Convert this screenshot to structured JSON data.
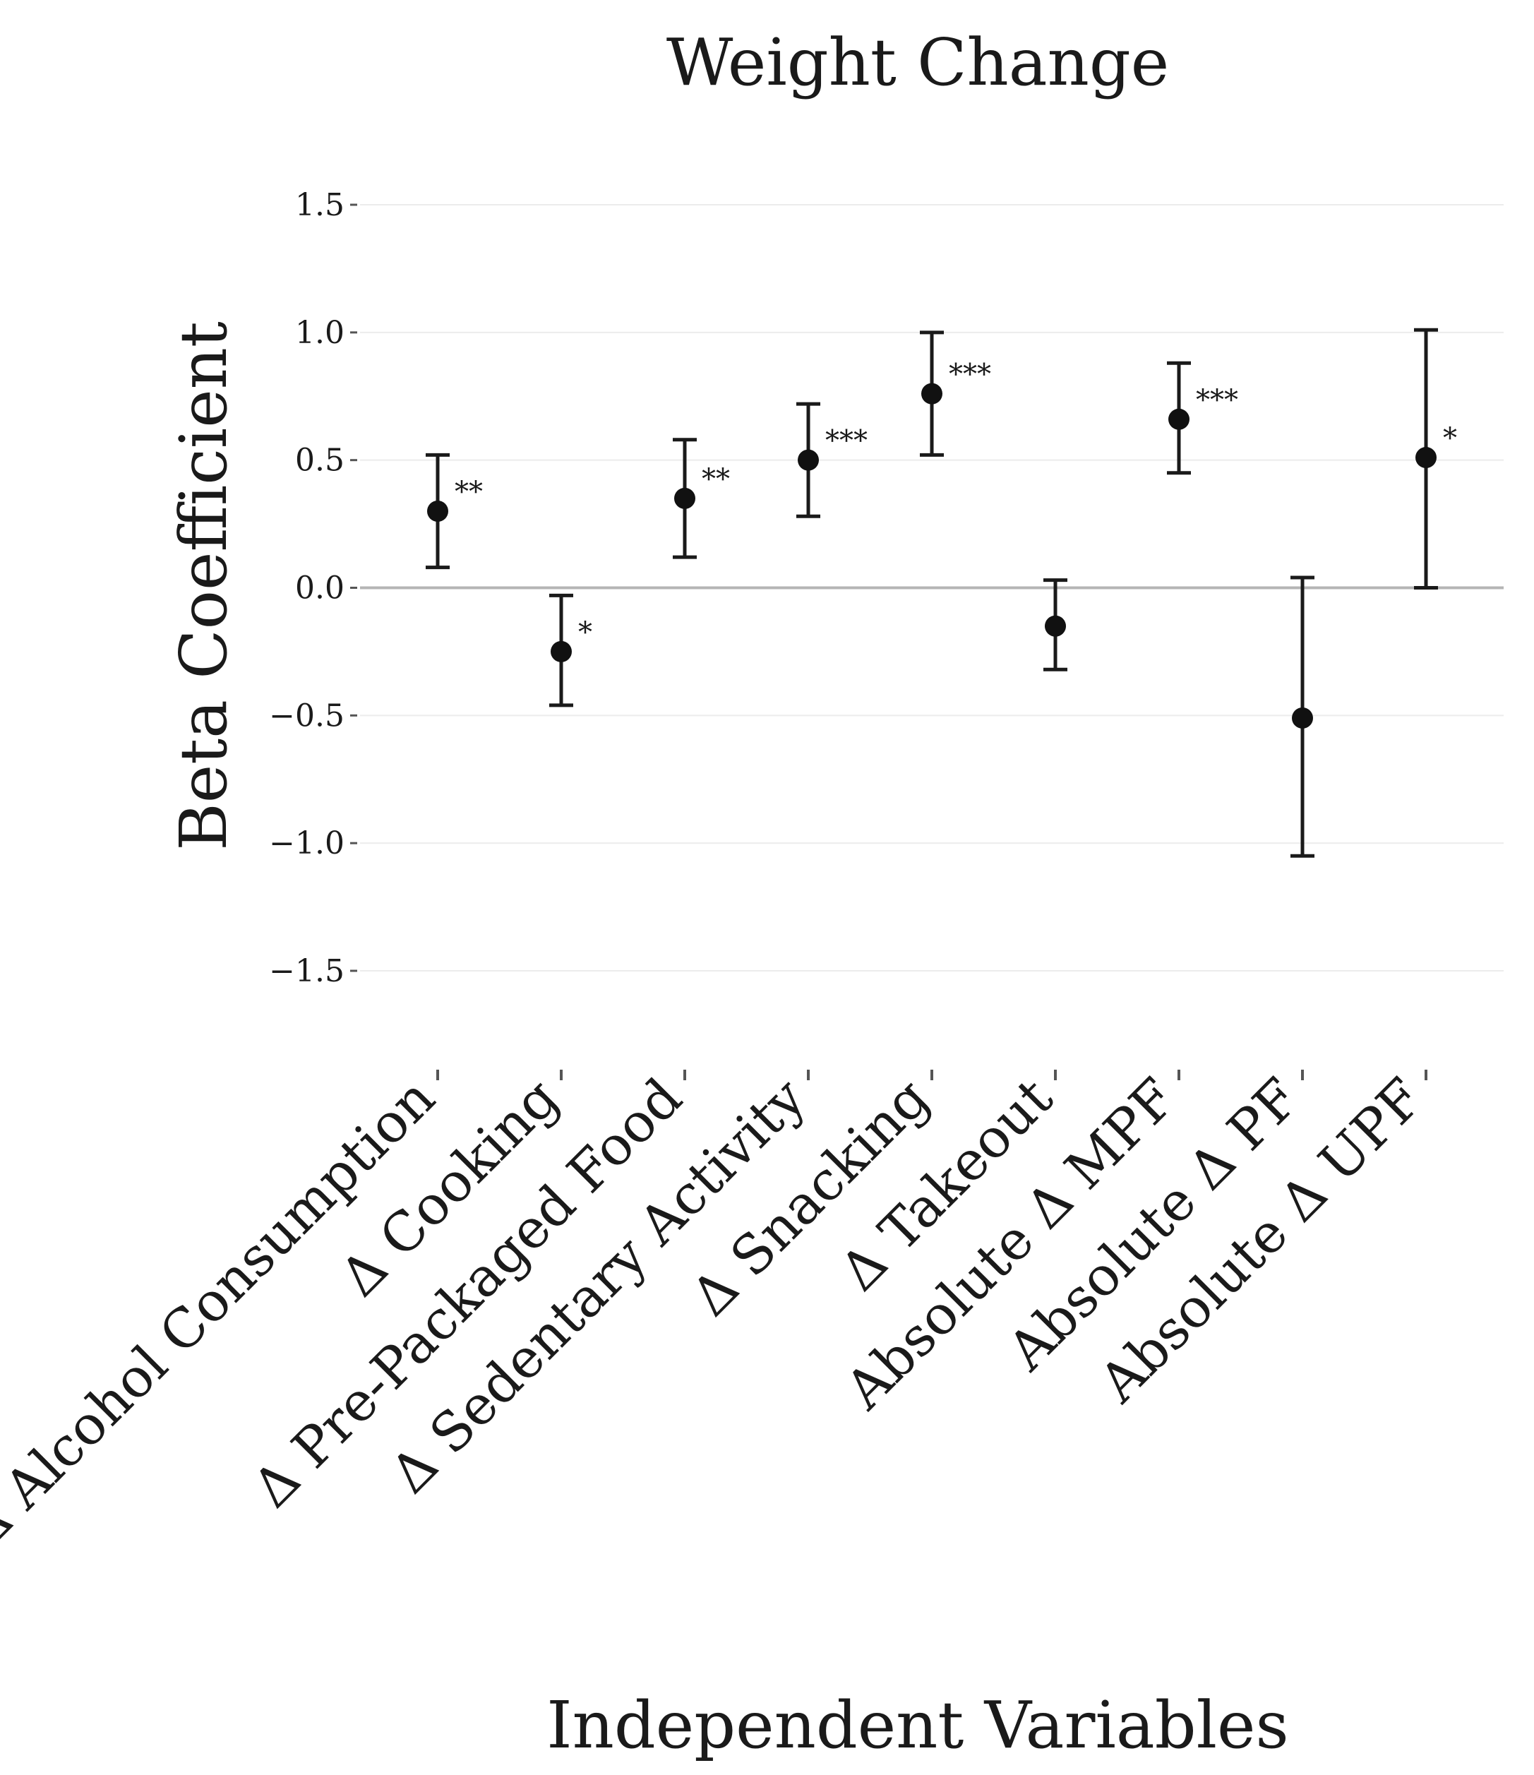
{
  "chart_data": {
    "type": "scatter",
    "title": "Weight Change",
    "xlabel": "Independent Variables",
    "ylabel": "Beta Coefficient",
    "ylim": [
      -1.5,
      1.5
    ],
    "yticks": [
      1.5,
      1.0,
      0.5,
      0.0,
      -0.5,
      -1.0,
      -1.5
    ],
    "ytick_labels": [
      "1.5",
      "1.0",
      "0.5",
      "0.0",
      "−0.5",
      "−1.0",
      "−1.5"
    ],
    "grid": true,
    "reference_line": 0.0,
    "categories": [
      "Δ Alcohol Consumption",
      "Δ Cooking",
      "Δ Pre-Packaged Food",
      "Δ Sedentary Activity",
      "Δ Snacking",
      "Δ Takeout",
      "Absolute Δ MPF",
      "Absolute Δ PF",
      "Absolute Δ UPF"
    ],
    "values": [
      0.3,
      -0.25,
      0.35,
      0.5,
      0.76,
      -0.15,
      0.66,
      -0.51,
      0.51
    ],
    "ci_lower": [
      0.08,
      -0.46,
      0.12,
      0.28,
      0.52,
      -0.32,
      0.45,
      -1.05,
      0.0
    ],
    "ci_upper": [
      0.52,
      -0.03,
      0.58,
      0.72,
      1.0,
      0.03,
      0.88,
      0.04,
      1.01
    ],
    "significance": [
      "**",
      "*",
      "**",
      "***",
      "***",
      "",
      "***",
      "",
      "*"
    ]
  }
}
